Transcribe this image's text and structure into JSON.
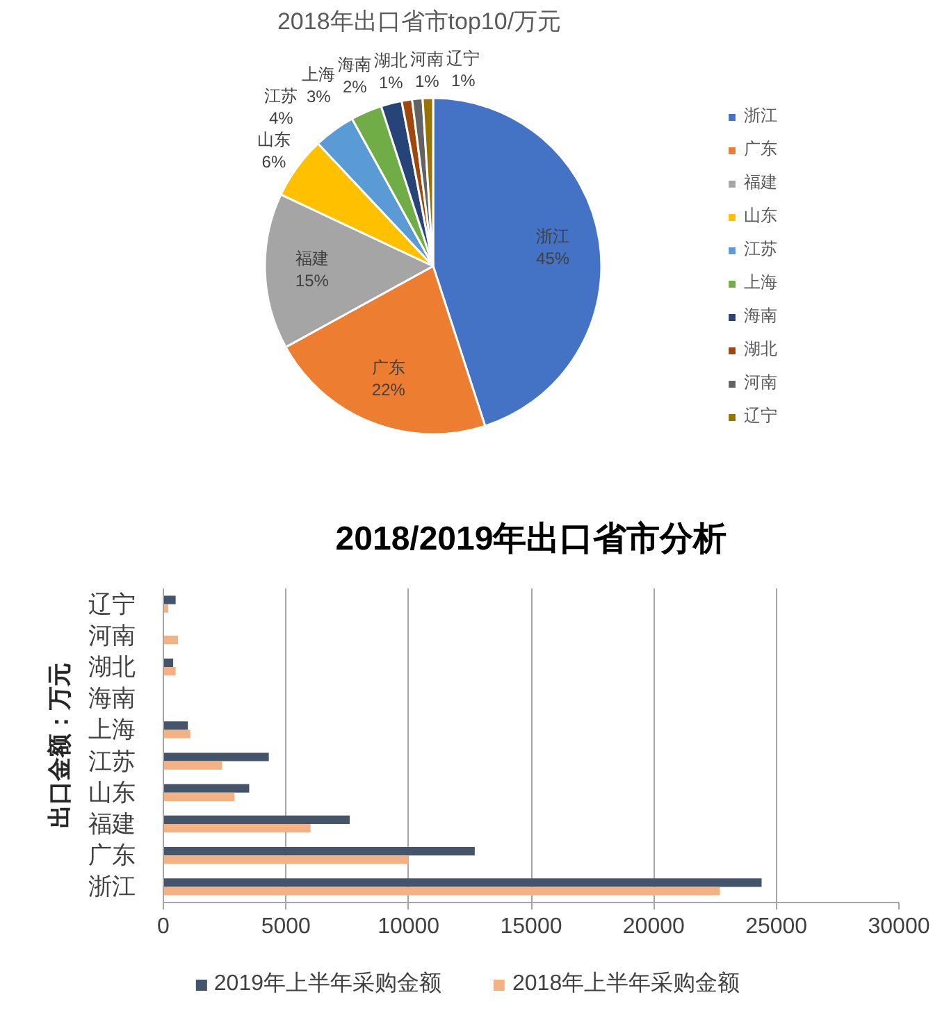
{
  "chart_data": [
    {
      "type": "pie",
      "title": "2018年出口省市top10/万元",
      "categories": [
        "浙江",
        "广东",
        "福建",
        "山东",
        "江苏",
        "上海",
        "海南",
        "湖北",
        "河南",
        "辽宁"
      ],
      "values": [
        45,
        22,
        15,
        6,
        4,
        3,
        2,
        1,
        1,
        1
      ],
      "value_labels": [
        "45%",
        "22%",
        "15%",
        "6%",
        "4%",
        "3%",
        "2%",
        "1%",
        "1%",
        "1%"
      ],
      "colors": [
        "#4472c4",
        "#ed7d31",
        "#a5a5a5",
        "#ffc000",
        "#5b9bd5",
        "#70ad47",
        "#264478",
        "#9e480e",
        "#636363",
        "#997300"
      ],
      "legend": "right"
    },
    {
      "type": "bar",
      "orientation": "horizontal",
      "title": "2018/2019年出口省市分析",
      "ylabel": "出口金额：万元",
      "categories": [
        "辽宁",
        "河南",
        "湖北",
        "海南",
        "上海",
        "江苏",
        "山东",
        "福建",
        "广东",
        "浙江"
      ],
      "series": [
        {
          "name": "2019年上半年采购金额",
          "color": "#44546a",
          "values": [
            500,
            null,
            400,
            null,
            1000,
            4300,
            3500,
            7600,
            12700,
            24400
          ]
        },
        {
          "name": "2018年上半年采购金额",
          "color": "#f4b183",
          "values": [
            200,
            600,
            500,
            null,
            1100,
            2400,
            2900,
            6000,
            10000,
            22700
          ]
        }
      ],
      "xlim": [
        0,
        30000
      ],
      "xticks": [
        0,
        5000,
        10000,
        15000,
        20000,
        25000,
        30000
      ],
      "grid": "x",
      "legend": "bottom"
    }
  ]
}
